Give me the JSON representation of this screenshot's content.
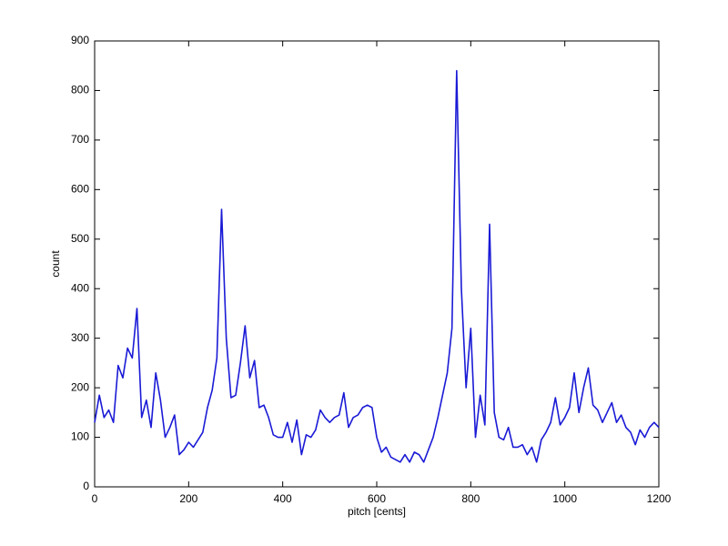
{
  "chart_data": {
    "type": "line",
    "x_label": "pitch [cents]",
    "y_label": "count",
    "x": [
      0,
      10,
      20,
      30,
      40,
      50,
      60,
      70,
      80,
      90,
      100,
      110,
      120,
      130,
      140,
      150,
      160,
      170,
      180,
      190,
      200,
      210,
      220,
      230,
      240,
      250,
      260,
      270,
      280,
      290,
      300,
      310,
      320,
      330,
      340,
      350,
      360,
      370,
      380,
      390,
      400,
      410,
      420,
      430,
      440,
      450,
      460,
      470,
      480,
      490,
      500,
      510,
      520,
      530,
      540,
      550,
      560,
      570,
      580,
      590,
      600,
      610,
      620,
      630,
      640,
      650,
      660,
      670,
      680,
      690,
      700,
      710,
      720,
      730,
      740,
      750,
      760,
      770,
      780,
      790,
      800,
      810,
      820,
      830,
      840,
      850,
      860,
      870,
      880,
      890,
      900,
      910,
      920,
      930,
      940,
      950,
      960,
      970,
      980,
      990,
      1000,
      1010,
      1020,
      1030,
      1040,
      1050,
      1060,
      1070,
      1080,
      1090,
      1100,
      1110,
      1120,
      1130,
      1140,
      1150,
      1160,
      1170,
      1180,
      1190,
      1200
    ],
    "series": [
      {
        "color": "#1a1ad6",
        "values": [
          130,
          185,
          140,
          155,
          130,
          245,
          220,
          280,
          260,
          360,
          140,
          175,
          120,
          230,
          175,
          100,
          120,
          145,
          65,
          75,
          90,
          80,
          95,
          110,
          160,
          195,
          260,
          560,
          300,
          180,
          185,
          250,
          325,
          220,
          255,
          160,
          165,
          140,
          105,
          100,
          100,
          130,
          90,
          135,
          65,
          105,
          100,
          115,
          155,
          140,
          130,
          140,
          145,
          190,
          120,
          140,
          145,
          160,
          165,
          160,
          100,
          70,
          80,
          60,
          55,
          50,
          65,
          50,
          70,
          65,
          50,
          75,
          100,
          140,
          185,
          230,
          320,
          840,
          400,
          200,
          320,
          100,
          185,
          125,
          530,
          150,
          100,
          95,
          120,
          80,
          80,
          85,
          65,
          80,
          50,
          95,
          110,
          130,
          180,
          125,
          140,
          160,
          230,
          150,
          200,
          240,
          165,
          155,
          130,
          150,
          170,
          130,
          145,
          120,
          110,
          85,
          115,
          100,
          120,
          130,
          120
        ]
      }
    ],
    "xlim": [
      0,
      1200
    ],
    "ylim": [
      0,
      900
    ],
    "xticks": [
      0,
      200,
      400,
      600,
      800,
      1000,
      1200
    ],
    "yticks": [
      0,
      100,
      200,
      300,
      400,
      500,
      600,
      700,
      800,
      900
    ]
  }
}
